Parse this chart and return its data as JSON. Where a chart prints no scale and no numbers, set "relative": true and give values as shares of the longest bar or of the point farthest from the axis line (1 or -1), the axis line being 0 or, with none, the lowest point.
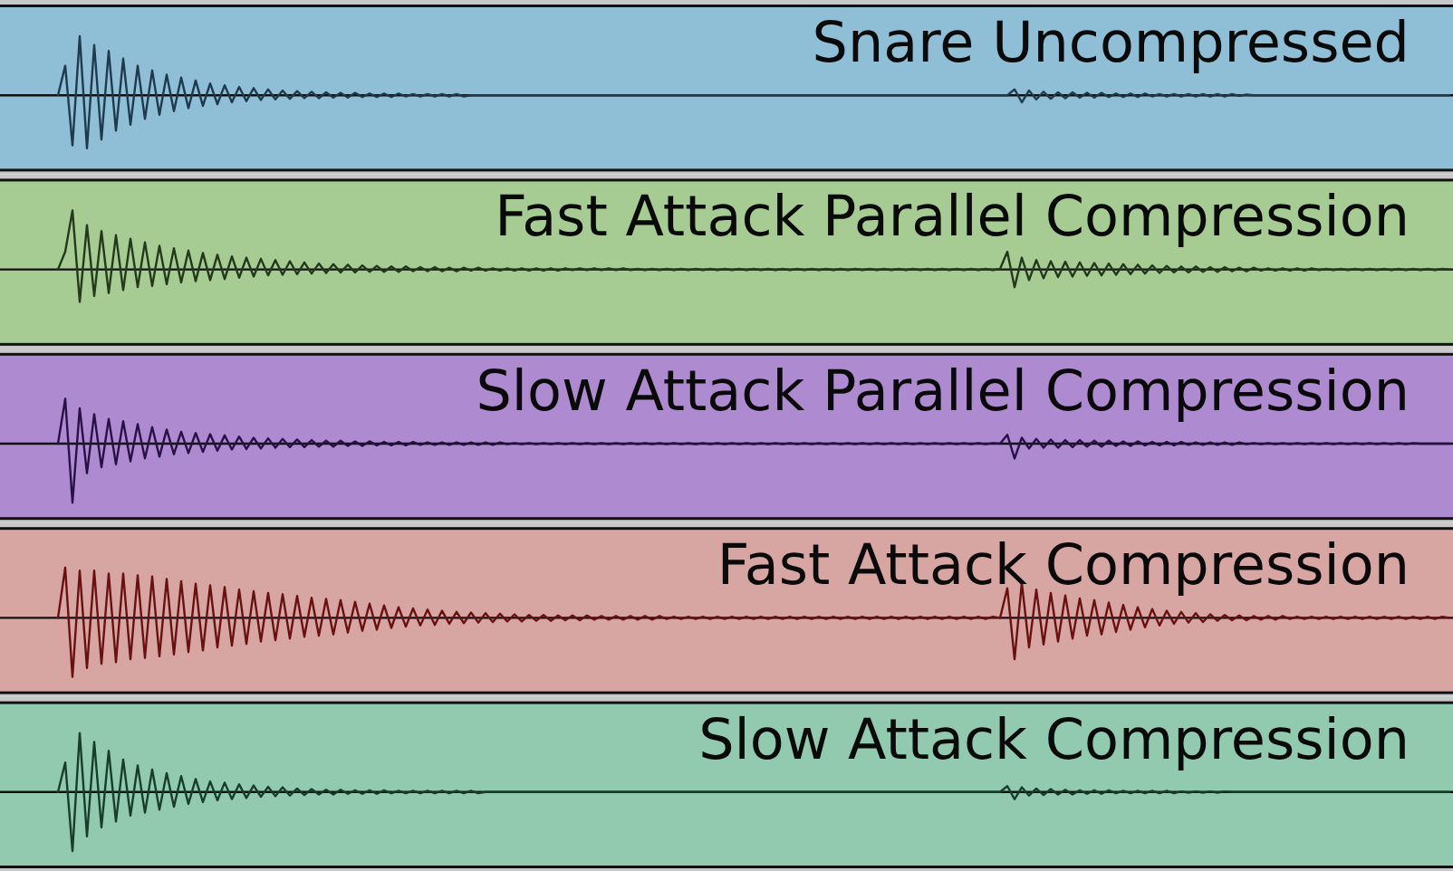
{
  "chart_data": [
    {
      "type": "line",
      "title": "Snare Uncompressed",
      "relative": true,
      "categories": [
        null,
        null,
        null,
        null,
        null,
        null,
        null,
        null,
        null,
        null,
        null,
        null,
        null,
        null,
        null,
        null,
        null,
        null,
        null,
        null,
        null,
        null,
        null,
        null,
        null,
        null,
        null,
        null,
        null,
        null,
        null,
        null,
        null,
        null,
        null,
        null,
        null,
        null,
        null,
        null,
        null,
        null,
        null,
        null,
        null,
        null,
        null,
        null,
        null,
        null,
        null,
        null,
        null,
        null,
        null,
        null,
        null,
        null,
        null,
        null,
        null,
        null,
        null,
        null,
        null,
        null,
        null,
        null,
        null,
        null,
        null,
        null,
        null,
        null,
        null,
        null,
        null,
        null,
        null,
        null,
        null,
        null,
        null,
        null,
        null,
        null,
        null,
        null,
        null,
        null,
        null,
        null,
        null,
        null,
        null,
        null,
        null,
        null,
        null,
        null,
        null,
        null,
        null,
        null,
        null,
        null,
        null,
        null,
        null,
        null,
        null,
        null,
        null,
        null,
        null,
        null,
        null,
        null,
        null,
        null,
        null,
        null,
        null,
        null,
        null,
        null,
        null,
        null,
        null,
        null,
        null,
        null,
        null,
        null,
        null,
        null,
        null,
        null,
        null,
        null,
        null,
        null,
        null,
        null,
        null,
        null,
        null,
        null,
        null,
        null,
        null,
        null,
        null,
        null,
        null,
        null,
        null,
        null,
        null,
        null,
        null,
        null,
        null,
        null,
        null,
        null,
        null,
        null,
        null,
        null,
        null,
        null,
        null,
        null,
        null,
        null,
        null,
        null,
        null,
        null,
        null,
        null,
        null,
        null,
        null,
        null,
        null,
        null,
        null,
        null,
        null,
        null,
        null
      ],
      "series": [
        {
          "color": "#1d3a4e",
          "values": [
            0,
            0.5,
            -0.85,
            1.0,
            -0.9,
            0.85,
            -0.75,
            0.75,
            -0.6,
            0.62,
            -0.5,
            0.5,
            -0.4,
            0.42,
            -0.33,
            0.35,
            -0.27,
            0.3,
            -0.22,
            0.25,
            -0.18,
            0.2,
            -0.15,
            0.17,
            -0.12,
            0.14,
            -0.1,
            0.12,
            -0.08,
            0.1,
            -0.07,
            0.08,
            -0.06,
            0.07,
            -0.05,
            0.06,
            -0.05,
            0.05,
            -0.04,
            0.04,
            -0.04,
            0.04,
            -0.03,
            0.03,
            -0.03,
            0.03,
            -0.03,
            0.03,
            -0.02,
            0.02,
            -0.02,
            0.02,
            -0.02,
            0.02,
            -0.02,
            0.02,
            -0.02,
            0,
            0,
            0,
            0,
            0,
            0,
            0,
            0,
            0,
            0,
            0,
            0,
            0,
            0,
            0,
            0,
            0,
            0,
            0,
            0,
            0,
            0,
            0,
            0,
            0,
            0,
            0,
            0,
            0,
            0,
            0,
            0,
            0,
            0,
            0,
            0,
            0,
            0,
            0,
            0,
            0,
            0,
            0,
            0,
            0,
            0,
            0,
            0,
            0,
            0,
            0,
            0,
            0,
            0,
            0,
            0,
            0,
            0,
            0,
            0,
            0,
            0,
            0,
            0,
            0,
            0,
            0,
            0,
            0,
            0,
            0,
            0,
            0,
            0,
            0,
            0.1,
            -0.12,
            0.08,
            -0.07,
            0.06,
            -0.06,
            0.05,
            -0.05,
            0.05,
            -0.04,
            0.04,
            -0.04,
            0.04,
            -0.03,
            0.03,
            -0.03,
            0.03,
            -0.03,
            0.03,
            -0.02,
            0.02,
            -0.02,
            0.02,
            -0.02,
            0.02,
            -0.02,
            0.02,
            -0.02,
            0.02,
            -0.02,
            0.02,
            -0.01,
            0.01,
            0,
            0,
            0,
            0,
            0,
            0,
            0,
            0,
            0,
            0,
            0,
            0,
            0,
            0,
            0,
            0,
            0,
            0,
            0,
            0,
            0,
            0,
            0,
            0,
            0,
            0,
            0,
            0
          ]
        }
      ]
    },
    {
      "type": "line",
      "title": "Fast Attack Parallel Compression",
      "relative": true,
      "categories": [
        null,
        null,
        null,
        null,
        null,
        null,
        null,
        null,
        null,
        null,
        null,
        null,
        null,
        null,
        null,
        null,
        null,
        null,
        null,
        null,
        null,
        null,
        null,
        null,
        null,
        null,
        null,
        null,
        null,
        null,
        null,
        null,
        null,
        null,
        null,
        null,
        null,
        null,
        null,
        null,
        null,
        null,
        null,
        null,
        null,
        null,
        null,
        null,
        null,
        null,
        null,
        null,
        null,
        null,
        null,
        null,
        null,
        null,
        null,
        null,
        null,
        null,
        null,
        null,
        null,
        null,
        null,
        null,
        null,
        null,
        null,
        null,
        null,
        null,
        null,
        null,
        null,
        null,
        null,
        null,
        null,
        null,
        null,
        null,
        null,
        null,
        null,
        null,
        null,
        null,
        null,
        null,
        null,
        null,
        null,
        null,
        null,
        null,
        null,
        null,
        null,
        null,
        null,
        null,
        null,
        null,
        null,
        null,
        null,
        null,
        null,
        null,
        null,
        null,
        null,
        null,
        null,
        null,
        null,
        null,
        null,
        null,
        null,
        null,
        null,
        null,
        null,
        null,
        null,
        null,
        null,
        null,
        null,
        null,
        null,
        null,
        null,
        null,
        null,
        null,
        null,
        null,
        null,
        null,
        null,
        null,
        null,
        null,
        null,
        null,
        null,
        null,
        null,
        null,
        null,
        null,
        null,
        null,
        null,
        null,
        null,
        null,
        null,
        null,
        null,
        null,
        null,
        null,
        null,
        null,
        null,
        null,
        null,
        null,
        null,
        null,
        null,
        null,
        null,
        null,
        null,
        null,
        null,
        null,
        null,
        null,
        null,
        null,
        null,
        null,
        null,
        null,
        null
      ],
      "series": [
        {
          "color": "#223a1a",
          "values": [
            0,
            0.3,
            1.0,
            -0.55,
            0.75,
            -0.45,
            0.65,
            -0.4,
            0.58,
            -0.35,
            0.52,
            -0.3,
            0.46,
            -0.28,
            0.4,
            -0.25,
            0.36,
            -0.22,
            0.32,
            -0.2,
            0.28,
            -0.18,
            0.25,
            -0.16,
            0.22,
            -0.14,
            0.2,
            -0.12,
            0.18,
            -0.1,
            0.16,
            -0.09,
            0.14,
            -0.08,
            0.12,
            -0.07,
            0.1,
            -0.06,
            0.09,
            -0.05,
            0.08,
            -0.05,
            0.07,
            -0.04,
            0.06,
            -0.04,
            0.05,
            -0.04,
            0.05,
            -0.03,
            0.04,
            -0.03,
            0.04,
            -0.03,
            0.03,
            -0.03,
            0.03,
            -0.02,
            0.03,
            -0.02,
            0.02,
            -0.02,
            0.02,
            -0.02,
            0.02,
            -0.02,
            0.02,
            -0.02,
            0.02,
            -0.02,
            0.02,
            -0.01,
            0.02,
            -0.01,
            0.02,
            -0.01,
            0.02,
            -0.01,
            0.02,
            -0.01,
            0.01,
            -0.01,
            0.01,
            -0.01,
            0.01,
            -0.01,
            0.01,
            -0.01,
            0.01,
            -0.01,
            0.01,
            -0.01,
            0.01,
            -0.01,
            0.01,
            -0.01,
            0.01,
            -0.01,
            0.01,
            -0.01,
            0.01,
            -0.01,
            0.01,
            -0.01,
            0.01,
            -0.01,
            0.01,
            -0.01,
            0.01,
            -0.01,
            0.01,
            -0.01,
            0.01,
            -0.01,
            0.01,
            -0.01,
            0.01,
            -0.01,
            0.01,
            -0.01,
            0.01,
            -0.01,
            0.01,
            -0.01,
            0.01,
            -0.01,
            0.01,
            -0.01,
            0.01,
            -0.01,
            0.01,
            0.3,
            -0.3,
            0.2,
            -0.18,
            0.16,
            -0.15,
            0.14,
            -0.13,
            0.13,
            -0.12,
            0.12,
            -0.11,
            0.11,
            -0.1,
            0.1,
            -0.09,
            0.09,
            -0.08,
            0.08,
            -0.07,
            0.07,
            -0.06,
            0.06,
            -0.05,
            0.05,
            -0.05,
            0.05,
            -0.04,
            0.04,
            -0.04,
            0.04,
            -0.03,
            0.03,
            -0.03,
            0.03,
            -0.02,
            0.02,
            -0.02,
            0.02,
            -0.02,
            0.02,
            -0.02,
            0.02,
            -0.01,
            0.01,
            -0.01,
            0.01,
            -0.01,
            0.01,
            -0.01,
            0.01,
            -0.01,
            0.01,
            -0.01,
            0.01,
            -0.01,
            0.01,
            -0.01,
            0.01,
            -0.01,
            0.01,
            0
          ]
        }
      ]
    },
    {
      "type": "line",
      "title": "Slow Attack Parallel Compression",
      "relative": true,
      "categories": [
        null,
        null,
        null,
        null,
        null,
        null,
        null,
        null,
        null,
        null,
        null,
        null,
        null,
        null,
        null,
        null,
        null,
        null,
        null,
        null,
        null,
        null,
        null,
        null,
        null,
        null,
        null,
        null,
        null,
        null,
        null,
        null,
        null,
        null,
        null,
        null,
        null,
        null,
        null,
        null,
        null,
        null,
        null,
        null,
        null,
        null,
        null,
        null,
        null,
        null,
        null,
        null,
        null,
        null,
        null,
        null,
        null,
        null,
        null,
        null,
        null,
        null,
        null,
        null,
        null,
        null,
        null,
        null,
        null,
        null,
        null,
        null,
        null,
        null,
        null,
        null,
        null,
        null,
        null,
        null,
        null,
        null,
        null,
        null,
        null,
        null,
        null,
        null,
        null,
        null,
        null,
        null,
        null,
        null,
        null,
        null,
        null,
        null,
        null,
        null,
        null,
        null,
        null,
        null,
        null,
        null,
        null,
        null,
        null,
        null,
        null,
        null,
        null,
        null,
        null,
        null,
        null,
        null,
        null,
        null,
        null,
        null,
        null,
        null,
        null,
        null,
        null,
        null,
        null,
        null,
        null,
        null,
        null,
        null,
        null,
        null,
        null,
        null,
        null,
        null,
        null,
        null,
        null,
        null,
        null,
        null,
        null,
        null,
        null,
        null,
        null,
        null,
        null,
        null,
        null,
        null,
        null,
        null,
        null,
        null,
        null,
        null,
        null,
        null,
        null,
        null,
        null,
        null,
        null,
        null,
        null,
        null,
        null,
        null,
        null,
        null,
        null,
        null,
        null,
        null,
        null,
        null,
        null,
        null,
        null,
        null,
        null,
        null,
        null,
        null,
        null,
        null,
        null
      ],
      "series": [
        {
          "color": "#2a1048",
          "values": [
            0,
            0.76,
            -1.0,
            0.6,
            -0.5,
            0.5,
            -0.4,
            0.42,
            -0.35,
            0.38,
            -0.3,
            0.33,
            -0.25,
            0.28,
            -0.22,
            0.24,
            -0.18,
            0.2,
            -0.16,
            0.18,
            -0.14,
            0.16,
            -0.12,
            0.14,
            -0.1,
            0.12,
            -0.09,
            0.1,
            -0.08,
            0.09,
            -0.07,
            0.08,
            -0.06,
            0.07,
            -0.06,
            0.06,
            -0.05,
            0.05,
            -0.05,
            0.05,
            -0.04,
            0.04,
            -0.04,
            0.04,
            -0.03,
            0.03,
            -0.03,
            0.03,
            -0.03,
            0.03,
            -0.02,
            0.02,
            -0.02,
            0.02,
            -0.02,
            0.02,
            -0.02,
            0.02,
            -0.02,
            0.02,
            -0.02,
            0.02,
            -0.01,
            0.01,
            -0.01,
            0.01,
            -0.01,
            0.01,
            -0.01,
            0.01,
            -0.01,
            0.01,
            -0.01,
            0.01,
            -0.01,
            0.01,
            -0.01,
            0.01,
            -0.01,
            0.01,
            -0.01,
            0.01,
            -0.01,
            0.01,
            -0.01,
            0.01,
            -0.01,
            0.01,
            -0.01,
            0.01,
            -0.01,
            0.01,
            -0.01,
            0.01,
            -0.01,
            0.01,
            -0.01,
            0.01,
            -0.01,
            0.01,
            -0.01,
            0.01,
            -0.01,
            0.01,
            -0.01,
            0.01,
            -0.01,
            0.01,
            -0.01,
            0.01,
            -0.01,
            0.01,
            -0.01,
            0.01,
            -0.01,
            0.01,
            -0.01,
            0.01,
            -0.01,
            0.01,
            -0.01,
            0.01,
            -0.01,
            0.01,
            -0.01,
            0.01,
            -0.01,
            0.01,
            -0.01,
            0.01,
            0,
            0.15,
            -0.25,
            0.1,
            -0.08,
            0.08,
            -0.07,
            0.07,
            -0.07,
            0.06,
            -0.06,
            0.06,
            -0.05,
            0.05,
            -0.05,
            0.05,
            -0.04,
            0.04,
            -0.04,
            0.04,
            -0.03,
            0.03,
            -0.03,
            0.03,
            -0.03,
            0.03,
            -0.02,
            0.02,
            -0.02,
            0.02,
            -0.02,
            0.02,
            -0.02,
            0.02,
            -0.01,
            0.01,
            -0.01,
            0.01,
            -0.01,
            0.01,
            -0.01,
            0.01,
            -0.01,
            0.01,
            -0.01,
            0.01,
            -0.01,
            0.01,
            -0.01,
            0.01,
            -0.01,
            0.01,
            -0.01,
            0.01,
            -0.01,
            0.01,
            -0.01,
            0.01,
            0,
            0,
            0,
            0,
            0
          ]
        }
      ]
    },
    {
      "type": "line",
      "title": "Fast Attack Compression",
      "relative": true,
      "categories": [
        null,
        null,
        null,
        null,
        null,
        null,
        null,
        null,
        null,
        null,
        null,
        null,
        null,
        null,
        null,
        null,
        null,
        null,
        null,
        null,
        null,
        null,
        null,
        null,
        null,
        null,
        null,
        null,
        null,
        null,
        null,
        null,
        null,
        null,
        null,
        null,
        null,
        null,
        null,
        null,
        null,
        null,
        null,
        null,
        null,
        null,
        null,
        null,
        null,
        null,
        null,
        null,
        null,
        null,
        null,
        null,
        null,
        null,
        null,
        null,
        null,
        null,
        null,
        null,
        null,
        null,
        null,
        null,
        null,
        null,
        null,
        null,
        null,
        null,
        null,
        null,
        null,
        null,
        null,
        null,
        null,
        null,
        null,
        null,
        null,
        null,
        null,
        null,
        null,
        null,
        null,
        null,
        null,
        null,
        null,
        null,
        null,
        null,
        null,
        null,
        null,
        null,
        null,
        null,
        null,
        null,
        null,
        null,
        null,
        null,
        null,
        null,
        null,
        null,
        null,
        null,
        null,
        null,
        null,
        null,
        null,
        null,
        null,
        null,
        null,
        null,
        null,
        null,
        null,
        null,
        null,
        null,
        null,
        null,
        null,
        null,
        null,
        null,
        null,
        null,
        null,
        null,
        null,
        null,
        null,
        null,
        null,
        null,
        null,
        null,
        null,
        null,
        null,
        null,
        null,
        null,
        null,
        null,
        null,
        null,
        null,
        null,
        null,
        null,
        null,
        null,
        null,
        null,
        null,
        null,
        null,
        null,
        null,
        null,
        null,
        null,
        null,
        null,
        null,
        null,
        null,
        null,
        null,
        null,
        null,
        null,
        null,
        null,
        null,
        null,
        null,
        null,
        null
      ],
      "series": [
        {
          "color": "#6a1010",
          "values": [
            0,
            0.85,
            -1.0,
            0.8,
            -0.85,
            0.8,
            -0.78,
            0.75,
            -0.75,
            0.75,
            -0.7,
            0.72,
            -0.68,
            0.7,
            -0.65,
            0.66,
            -0.62,
            0.62,
            -0.58,
            0.58,
            -0.55,
            0.55,
            -0.5,
            0.52,
            -0.47,
            0.48,
            -0.44,
            0.45,
            -0.4,
            0.42,
            -0.38,
            0.4,
            -0.35,
            0.37,
            -0.32,
            0.34,
            -0.3,
            0.32,
            -0.28,
            0.3,
            -0.25,
            0.27,
            -0.22,
            0.24,
            -0.2,
            0.21,
            -0.17,
            0.18,
            -0.15,
            0.16,
            -0.13,
            0.14,
            -0.12,
            0.12,
            -0.1,
            0.1,
            -0.09,
            0.09,
            -0.08,
            0.08,
            -0.07,
            0.07,
            -0.06,
            0.06,
            -0.06,
            0.05,
            -0.05,
            0.05,
            -0.05,
            0.04,
            -0.04,
            0.04,
            -0.04,
            0.04,
            -0.03,
            0.03,
            -0.03,
            0.03,
            -0.03,
            0.03,
            -0.03,
            0.03,
            -0.03,
            0.03,
            -0.02,
            0.02,
            -0.02,
            0.02,
            -0.02,
            0.02,
            -0.02,
            0.02,
            -0.02,
            0.02,
            -0.02,
            0.02,
            -0.02,
            0.02,
            -0.02,
            0.02,
            -0.02,
            0.02,
            -0.02,
            0.02,
            -0.02,
            0.02,
            -0.02,
            0.02,
            -0.02,
            0.02,
            -0.02,
            0.02,
            -0.02,
            0.02,
            -0.02,
            0.02,
            -0.02,
            0.02,
            -0.02,
            0.02,
            -0.02,
            0.02,
            -0.02,
            0.02,
            -0.02,
            0.02,
            -0.02,
            0.02,
            -0.02,
            0.02,
            0,
            0.5,
            -0.7,
            0.6,
            -0.5,
            0.48,
            -0.45,
            0.42,
            -0.4,
            0.38,
            -0.35,
            0.33,
            -0.3,
            0.3,
            -0.28,
            0.26,
            -0.24,
            0.22,
            -0.2,
            0.18,
            -0.16,
            0.15,
            -0.13,
            0.12,
            -0.1,
            0.1,
            -0.08,
            0.08,
            -0.07,
            0.06,
            -0.05,
            0.05,
            -0.04,
            0.04,
            -0.04,
            0.03,
            -0.03,
            0.03,
            -0.03,
            0.03,
            -0.02,
            0.02,
            -0.02,
            0.02,
            -0.02,
            0.02,
            -0.02,
            0.02,
            -0.02,
            0.02,
            -0.02,
            0.02,
            -0.02,
            0.02,
            -0.02,
            0.02,
            -0.02,
            0.02,
            -0.02,
            0.02,
            -0.02,
            0.02,
            0
          ]
        }
      ]
    },
    {
      "type": "line",
      "title": "Slow Attack Compression",
      "relative": true,
      "categories": [
        null,
        null,
        null,
        null,
        null,
        null,
        null,
        null,
        null,
        null,
        null,
        null,
        null,
        null,
        null,
        null,
        null,
        null,
        null,
        null,
        null,
        null,
        null,
        null,
        null,
        null,
        null,
        null,
        null,
        null,
        null,
        null,
        null,
        null,
        null,
        null,
        null,
        null,
        null,
        null,
        null,
        null,
        null,
        null,
        null,
        null,
        null,
        null,
        null,
        null,
        null,
        null,
        null,
        null,
        null,
        null,
        null,
        null,
        null,
        null,
        null,
        null,
        null,
        null,
        null,
        null,
        null,
        null,
        null,
        null,
        null,
        null,
        null,
        null,
        null,
        null,
        null,
        null,
        null,
        null,
        null,
        null,
        null,
        null,
        null,
        null,
        null,
        null,
        null,
        null,
        null,
        null,
        null,
        null,
        null,
        null,
        null,
        null,
        null,
        null,
        null,
        null,
        null,
        null,
        null,
        null,
        null,
        null,
        null,
        null,
        null,
        null,
        null,
        null,
        null,
        null,
        null,
        null,
        null,
        null,
        null,
        null,
        null,
        null,
        null,
        null,
        null,
        null,
        null,
        null,
        null,
        null,
        null,
        null,
        null,
        null,
        null,
        null,
        null,
        null,
        null,
        null,
        null,
        null,
        null,
        null,
        null,
        null,
        null,
        null,
        null,
        null,
        null,
        null,
        null,
        null,
        null,
        null,
        null,
        null,
        null,
        null,
        null,
        null,
        null,
        null,
        null,
        null,
        null,
        null,
        null,
        null,
        null,
        null,
        null,
        null,
        null,
        null,
        null,
        null,
        null,
        null,
        null,
        null,
        null,
        null,
        null,
        null,
        null,
        null,
        null,
        null,
        null
      ],
      "series": [
        {
          "color": "#163e2c",
          "values": [
            0,
            0.5,
            -1.0,
            1.0,
            -0.75,
            0.85,
            -0.6,
            0.7,
            -0.5,
            0.55,
            -0.4,
            0.45,
            -0.35,
            0.38,
            -0.3,
            0.32,
            -0.25,
            0.27,
            -0.2,
            0.22,
            -0.17,
            0.18,
            -0.14,
            0.16,
            -0.12,
            0.13,
            -0.1,
            0.11,
            -0.08,
            0.09,
            -0.07,
            0.08,
            -0.06,
            0.06,
            -0.05,
            0.05,
            -0.04,
            0.04,
            -0.04,
            0.04,
            -0.03,
            0.03,
            -0.03,
            0.03,
            -0.03,
            0.03,
            -0.02,
            0.02,
            -0.02,
            0.02,
            -0.02,
            0.02,
            -0.02,
            0.02,
            -0.02,
            0.02,
            -0.02,
            0.02,
            -0.02,
            0,
            0,
            0,
            0,
            0,
            0,
            0,
            0,
            0,
            0,
            0,
            0,
            0,
            0,
            0,
            0,
            0,
            0,
            0,
            0,
            0,
            0,
            0,
            0,
            0,
            0,
            0,
            0,
            0,
            0,
            0,
            0,
            0,
            0,
            0,
            0,
            0,
            0,
            0,
            0,
            0,
            0,
            0,
            0,
            0,
            0,
            0,
            0,
            0,
            0,
            0,
            0,
            0,
            0,
            0,
            0,
            0,
            0,
            0,
            0,
            0,
            0,
            0,
            0,
            0,
            0,
            0,
            0,
            0,
            0,
            0,
            0,
            0.1,
            -0.12,
            0.08,
            -0.06,
            0.06,
            -0.05,
            0.05,
            -0.04,
            0.04,
            -0.04,
            0.03,
            -0.03,
            0.03,
            -0.03,
            0.03,
            -0.02,
            0.02,
            -0.02,
            0.02,
            -0.02,
            0.02,
            -0.02,
            0.02,
            -0.02,
            0.01,
            -0.01,
            0.01,
            -0.01,
            0.01,
            -0.01,
            0.01,
            0,
            0,
            0,
            0,
            0,
            0,
            0,
            0,
            0,
            0,
            0,
            0,
            0,
            0,
            0,
            0,
            0,
            0,
            0,
            0,
            0,
            0,
            0,
            0,
            0,
            0,
            0,
            0,
            0,
            0,
            0
          ]
        }
      ]
    }
  ]
}
